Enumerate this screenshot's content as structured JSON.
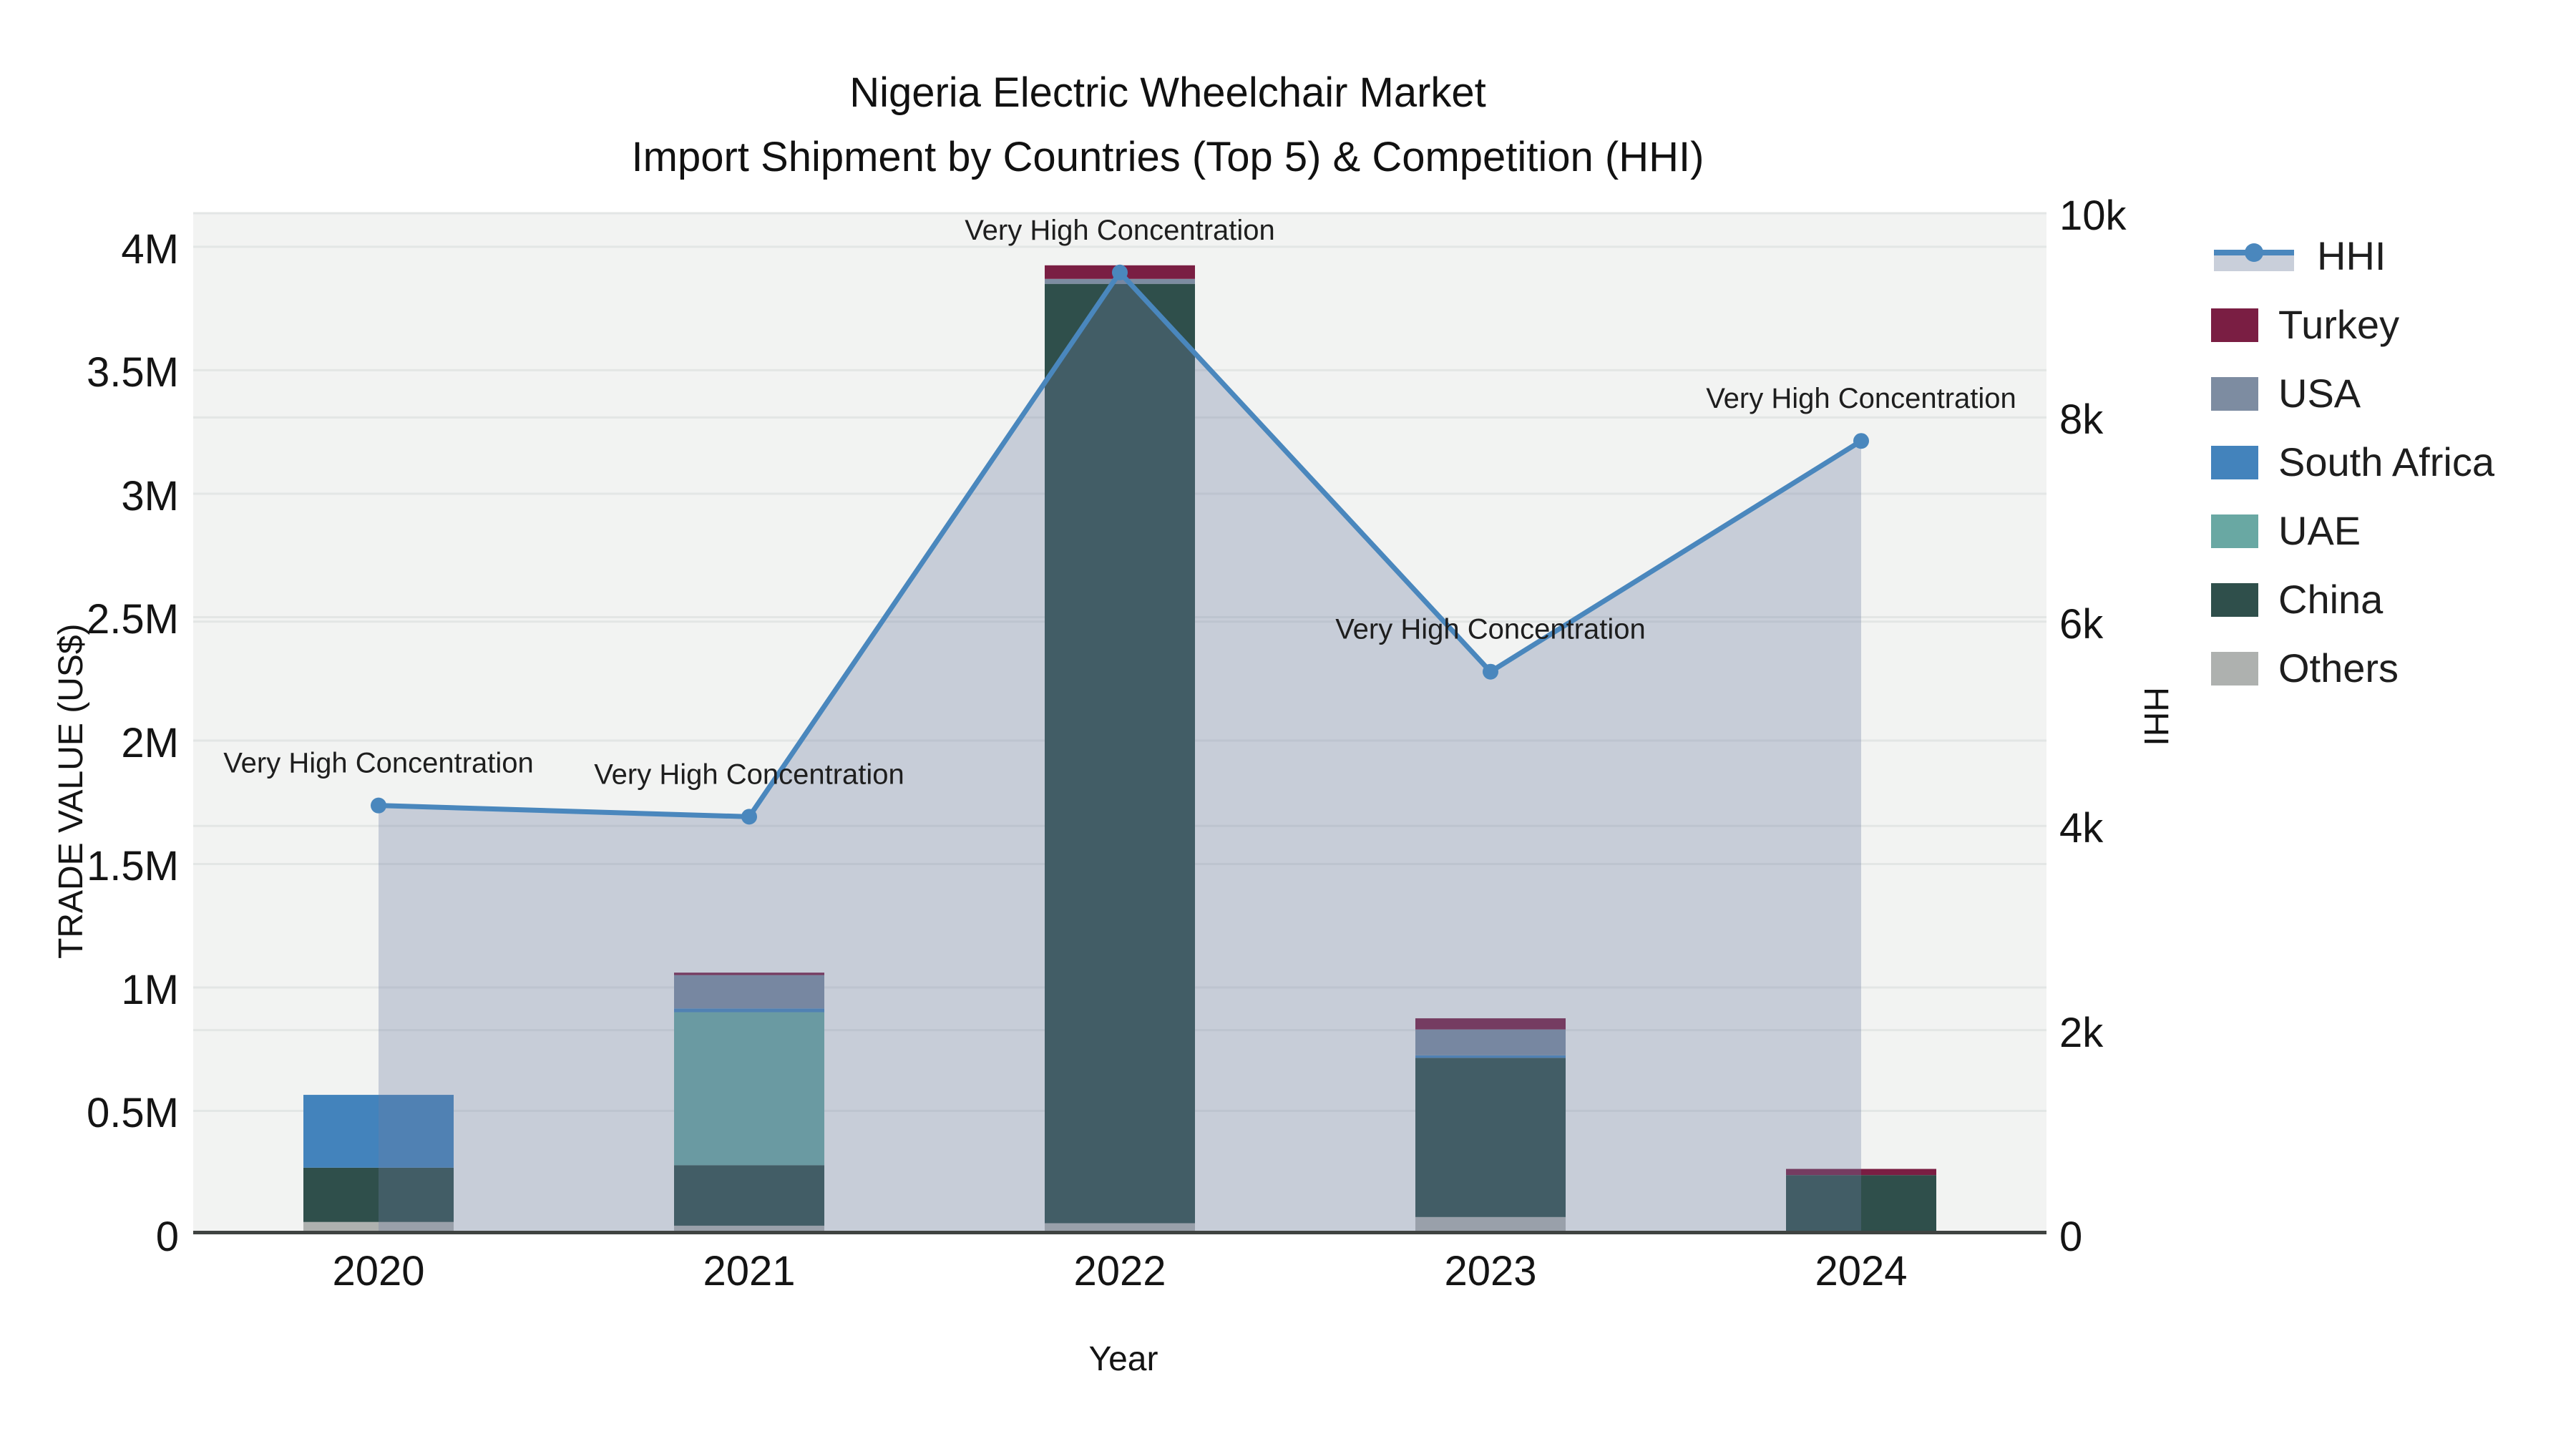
{
  "title": {
    "line1": "Nigeria Electric Wheelchair Market",
    "line2": "Import Shipment by Countries (Top 5) & Competition (HHI)"
  },
  "axes": {
    "x": {
      "title": "Year",
      "categories": [
        "2020",
        "2021",
        "2022",
        "2023",
        "2024"
      ]
    },
    "y_left": {
      "title": "TRADE VALUE (US$)",
      "ticks": [
        {
          "value": 0,
          "label": "0"
        },
        {
          "value": 500000,
          "label": "0.5M"
        },
        {
          "value": 1000000,
          "label": "1M"
        },
        {
          "value": 1500000,
          "label": "1.5M"
        },
        {
          "value": 2000000,
          "label": "2M"
        },
        {
          "value": 2500000,
          "label": "2.5M"
        },
        {
          "value": 3000000,
          "label": "3M"
        },
        {
          "value": 3500000,
          "label": "3.5M"
        },
        {
          "value": 4000000,
          "label": "4M"
        }
      ]
    },
    "y_right": {
      "title": "HHI",
      "ticks": [
        {
          "value": 0,
          "label": "0"
        },
        {
          "value": 2000,
          "label": "2k"
        },
        {
          "value": 4000,
          "label": "4k"
        },
        {
          "value": 6000,
          "label": "6k"
        },
        {
          "value": 8000,
          "label": "8k"
        },
        {
          "value": 10000,
          "label": "10k"
        }
      ]
    }
  },
  "legend": [
    {
      "label": "HHI",
      "type": "line",
      "color": "#4A87BD"
    },
    {
      "label": "Turkey",
      "type": "swatch",
      "color": "#7A1E43"
    },
    {
      "label": "USA",
      "type": "swatch",
      "color": "#7D8CA1"
    },
    {
      "label": "South Africa",
      "type": "swatch",
      "color": "#4383BC"
    },
    {
      "label": "UAE",
      "type": "swatch",
      "color": "#69A8A3"
    },
    {
      "label": "China",
      "type": "swatch",
      "color": "#2F4F4B"
    },
    {
      "label": "Others",
      "type": "swatch",
      "color": "#AEB1AF"
    }
  ],
  "chart_data": {
    "type": "combo: stacked bar (left axis) + line with markers and area fill (right axis)",
    "categories": [
      "2020",
      "2021",
      "2022",
      "2023",
      "2024"
    ],
    "bar_series": [
      {
        "name": "Others",
        "color": "#AEB1AF",
        "values": [
          50000,
          35000,
          45000,
          70000,
          0
        ]
      },
      {
        "name": "China",
        "color": "#2F4F4B",
        "values": [
          220000,
          245000,
          3805000,
          645000,
          240000
        ]
      },
      {
        "name": "UAE",
        "color": "#69A8A3",
        "values": [
          0,
          620000,
          0,
          0,
          0
        ]
      },
      {
        "name": "South Africa",
        "color": "#4383BC",
        "values": [
          295000,
          15000,
          0,
          10000,
          0
        ]
      },
      {
        "name": "USA",
        "color": "#7D8CA1",
        "values": [
          0,
          135000,
          20000,
          105000,
          0
        ]
      },
      {
        "name": "Turkey",
        "color": "#7A1E43",
        "values": [
          0,
          10000,
          55000,
          45000,
          25000
        ]
      }
    ],
    "bar_totals": [
      565000,
      1060000,
      3925000,
      875000,
      265000
    ],
    "line_series": {
      "name": "HHI",
      "axis": "right",
      "color": "#4A87BD",
      "fill": "tozeroy",
      "fill_color": "rgba(108,125,162,0.32)",
      "values": [
        4200,
        4090,
        9420,
        5510,
        7770
      ]
    },
    "annotations": [
      {
        "text": "Very High Concentration",
        "category": "2020"
      },
      {
        "text": "Very High Concentration",
        "category": "2021"
      },
      {
        "text": "Very High Concentration",
        "category": "2022"
      },
      {
        "text": "Very High Concentration",
        "category": "2023"
      },
      {
        "text": "Very High Concentration",
        "category": "2024"
      }
    ],
    "title": "Nigeria Electric Wheelchair Market Import Shipment by Countries (Top 5) & Competition (HHI)",
    "xlabel": "Year",
    "ylabel_left": "TRADE VALUE (US$)",
    "ylabel_right": "HHI",
    "ylim_left": [
      0,
      4136000
    ],
    "ylim_right": [
      0,
      10000
    ],
    "grid": true,
    "legend_position": "right"
  },
  "colors": {
    "plot_background": "#F2F3F2",
    "page_background": "#FFFFFF",
    "gridline": "#E3E6E5",
    "axis_line": "#3F4341",
    "text": "#141414",
    "hhi_line": "#4A87BD",
    "hhi_fill": "rgba(108,125,162,0.32)",
    "hhi_fill_legend": "#C9CFDA"
  }
}
